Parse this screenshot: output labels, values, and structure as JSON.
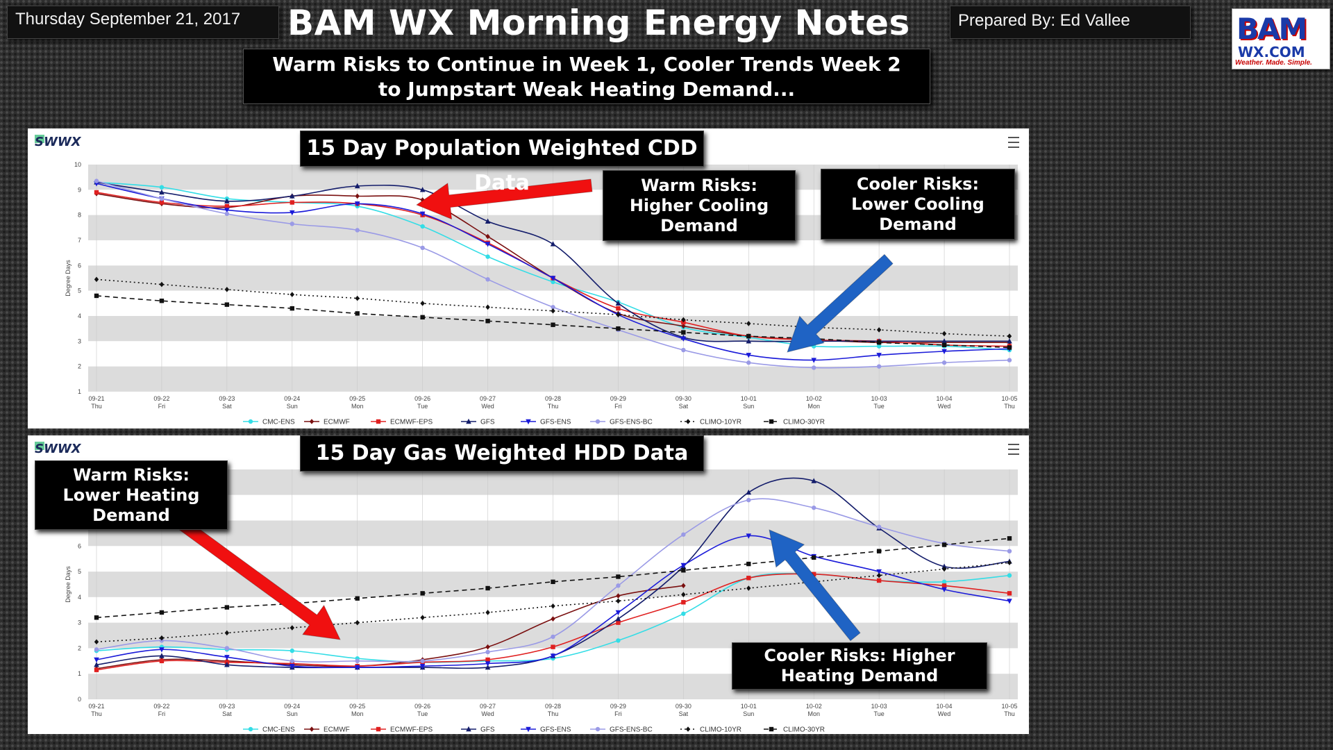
{
  "header": {
    "date": "Thursday September 21, 2017",
    "title": "BAM WX Morning Energy Notes",
    "prepared_by": "Prepared By: Ed Vallee",
    "logo_top": "BAM",
    "logo_mid": "WX.COM",
    "logo_tag": "Weather. Made. Simple."
  },
  "subtitle": {
    "line1": "Warm Risks to Continue in Week 1, Cooler Trends Week 2",
    "line2": "to Jumpstart Weak Heating Demand..."
  },
  "colors": {
    "CMC-ENS": "#33dde6",
    "ECMWF": "#7a1010",
    "ECMWF-EPS": "#e02020",
    "GFS": "#141d6b",
    "GFS-ENS": "#1a1ad9",
    "GFS-ENS-BC": "#9a9ae6",
    "CLIMO-10YR": "#111111",
    "CLIMO-30YR": "#111111",
    "red_arrow": "#f01010",
    "blue_arrow": "#1f63c4"
  },
  "chart_data": [
    {
      "type": "line",
      "title": "15 Day Population Weighted CDD Data",
      "watermark": "SWWX",
      "ylabel": "Degree Days",
      "ylim": [
        1,
        10
      ],
      "yticks": [
        "1",
        "2",
        "3",
        "4",
        "5",
        "6",
        "7",
        "8",
        "9",
        "10"
      ],
      "x": [
        "09-21",
        "09-22",
        "09-23",
        "09-24",
        "09-25",
        "09-26",
        "09-27",
        "09-28",
        "09-29",
        "09-30",
        "10-01",
        "10-02",
        "10-03",
        "10-04",
        "10-05"
      ],
      "x_days": [
        "Thu",
        "Fri",
        "Sat",
        "Sun",
        "Mon",
        "Tue",
        "Wed",
        "Thu",
        "Fri",
        "Sat",
        "Sun",
        "Mon",
        "Tue",
        "Wed",
        "Thu"
      ],
      "series": [
        {
          "name": "CMC-ENS",
          "values": [
            9.3,
            9.1,
            8.65,
            8.5,
            8.35,
            7.55,
            6.35,
            5.35,
            4.55,
            3.55,
            3.15,
            2.8,
            2.8,
            2.8,
            2.65
          ]
        },
        {
          "name": "ECMWF",
          "values": [
            8.85,
            8.45,
            8.3,
            8.75,
            8.75,
            8.6,
            7.15,
            5.5,
            4.1,
            3.6,
            3.2,
            3.05,
            2.95,
            2.95,
            2.95
          ]
        },
        {
          "name": "ECMWF-EPS",
          "values": [
            8.9,
            8.5,
            8.35,
            8.5,
            8.45,
            8.0,
            6.9,
            5.5,
            4.3,
            3.75,
            3.2,
            3.05,
            3.0,
            2.85,
            2.8
          ]
        },
        {
          "name": "GFS",
          "values": [
            9.3,
            8.9,
            8.55,
            8.75,
            9.15,
            9.0,
            7.75,
            6.85,
            4.5,
            3.15,
            3.0,
            3.0,
            3.0,
            3.0,
            3.0
          ]
        },
        {
          "name": "GFS-ENS",
          "values": [
            9.25,
            8.65,
            8.2,
            8.1,
            8.45,
            8.05,
            6.85,
            5.5,
            4.05,
            3.1,
            2.45,
            2.25,
            2.45,
            2.6,
            2.7
          ]
        },
        {
          "name": "GFS-ENS-BC",
          "values": [
            9.35,
            8.65,
            8.05,
            7.65,
            7.4,
            6.7,
            5.45,
            4.35,
            3.45,
            2.65,
            2.15,
            1.95,
            2.0,
            2.15,
            2.25
          ]
        },
        {
          "name": "CLIMO-10YR",
          "values": [
            5.45,
            5.25,
            5.05,
            4.85,
            4.7,
            4.5,
            4.35,
            4.2,
            4.05,
            3.85,
            3.7,
            3.55,
            3.45,
            3.3,
            3.2
          ]
        },
        {
          "name": "CLIMO-30YR",
          "values": [
            4.8,
            4.6,
            4.45,
            4.3,
            4.1,
            3.95,
            3.8,
            3.65,
            3.5,
            3.35,
            3.2,
            3.1,
            2.95,
            2.85,
            2.75
          ]
        }
      ],
      "annotations": {
        "warm": "Warm Risks:\nHigher Cooling\nDemand",
        "cool": "Cooler Risks:\nLower Cooling\nDemand"
      }
    },
    {
      "type": "line",
      "title": "15 Day Gas Weighted HDD Data",
      "watermark": "SWWX",
      "ylabel": "Degree Days",
      "ylim": [
        0,
        9
      ],
      "yticks": [
        "0",
        "1",
        "2",
        "3",
        "4",
        "5",
        "6"
      ],
      "x": [
        "09-21",
        "09-22",
        "09-23",
        "09-24",
        "09-25",
        "09-26",
        "09-27",
        "09-28",
        "09-29",
        "09-30",
        "10-01",
        "10-02",
        "10-03",
        "10-04",
        "10-05"
      ],
      "x_days": [
        "Thu",
        "Fri",
        "Sat",
        "Sun",
        "Mon",
        "Tue",
        "Wed",
        "Thu",
        "Fri",
        "Sat",
        "Sun",
        "Mon",
        "Tue",
        "Wed",
        "Thu"
      ],
      "series": [
        {
          "name": "CMC-ENS",
          "values": [
            1.9,
            2.05,
            1.95,
            1.9,
            1.6,
            1.45,
            1.5,
            1.6,
            2.3,
            3.35,
            4.75,
            4.9,
            4.65,
            4.6,
            4.85
          ]
        },
        {
          "name": "ECMWF",
          "values": [
            1.2,
            1.55,
            1.5,
            1.35,
            1.3,
            1.55,
            2.05,
            3.15,
            4.05,
            4.45,
            null,
            null,
            null,
            null,
            null
          ]
        },
        {
          "name": "ECMWF-EPS",
          "values": [
            1.15,
            1.5,
            1.45,
            1.4,
            1.3,
            1.45,
            1.55,
            2.05,
            3.0,
            3.8,
            4.75,
            4.9,
            4.65,
            4.45,
            4.15
          ]
        },
        {
          "name": "GFS",
          "values": [
            1.35,
            1.7,
            1.35,
            1.25,
            1.25,
            1.25,
            1.25,
            1.7,
            3.15,
            5.2,
            8.1,
            8.55,
            6.7,
            5.2,
            5.4
          ]
        },
        {
          "name": "GFS-ENS",
          "values": [
            1.55,
            1.95,
            1.65,
            1.3,
            1.25,
            1.3,
            1.4,
            1.7,
            3.4,
            5.25,
            6.4,
            5.6,
            5.0,
            4.3,
            3.85
          ]
        },
        {
          "name": "GFS-ENS-BC",
          "values": [
            1.95,
            2.3,
            2.0,
            1.5,
            1.5,
            1.5,
            1.85,
            2.45,
            4.45,
            6.45,
            7.8,
            7.5,
            6.75,
            6.1,
            5.8
          ]
        },
        {
          "name": "CLIMO-10YR",
          "values": [
            2.25,
            2.4,
            2.6,
            2.8,
            3.0,
            3.2,
            3.4,
            3.65,
            3.85,
            4.1,
            4.35,
            4.6,
            4.85,
            5.1,
            5.35
          ]
        },
        {
          "name": "CLIMO-30YR",
          "values": [
            3.2,
            3.4,
            3.6,
            3.75,
            3.95,
            4.15,
            4.35,
            4.6,
            4.8,
            5.05,
            5.3,
            5.55,
            5.8,
            6.05,
            6.3
          ]
        }
      ],
      "annotations": {
        "warm": "Warm Risks:\nLower Heating\nDemand",
        "cool": "Cooler Risks: Higher\nHeating Demand"
      }
    }
  ]
}
